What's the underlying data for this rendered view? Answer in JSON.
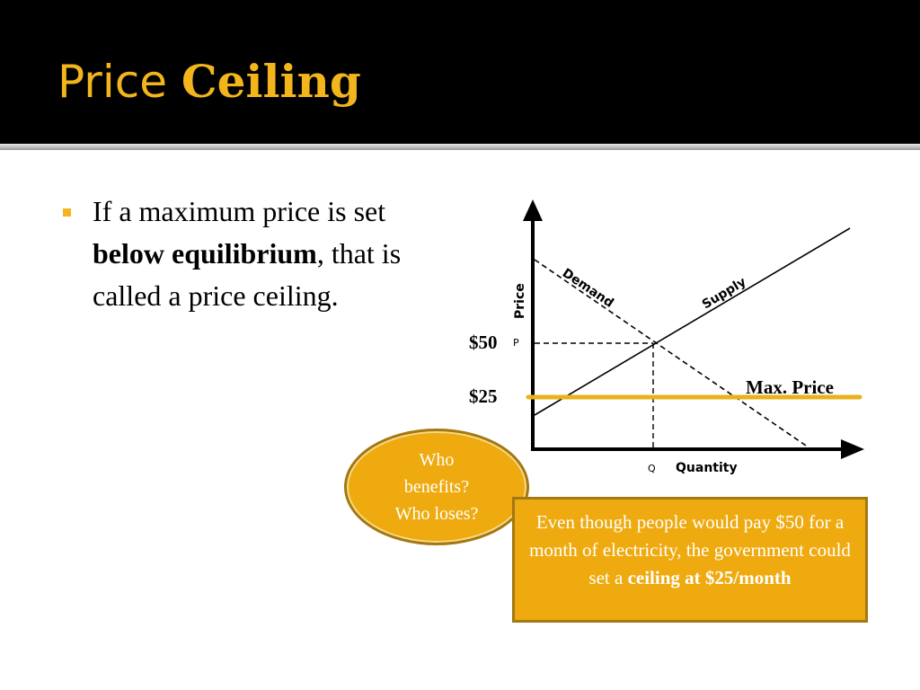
{
  "slide": {
    "title_normal": "Price ",
    "title_bold": "Ceiling",
    "bullet": {
      "part1": "If a maximum price is set ",
      "bold": "below equilibrium",
      "part2": ", that is called a price ceiling."
    }
  },
  "diagram": {
    "y_axis_label": "Price",
    "x_axis_label": "Quantity",
    "demand_label": "Demand",
    "supply_label": "Supply",
    "p_marker": "P",
    "q_marker": "Q",
    "equilibrium_price_label": "$50",
    "ceiling_price_label": "$25",
    "ceiling_line_label": "Max. Price",
    "ceiling_line_color": "#e9b21c"
  },
  "callouts": {
    "question_lines": [
      "Who",
      "benefits?",
      "Who loses?"
    ],
    "explanation": {
      "text": "Even though people would pay $50 for a month of electricity, the government could set a ",
      "bold": "ceiling at $25/month"
    }
  },
  "colors": {
    "title": "#f2b51c",
    "accent_fill": "#eeaa0f",
    "accent_border": "#a47812"
  }
}
